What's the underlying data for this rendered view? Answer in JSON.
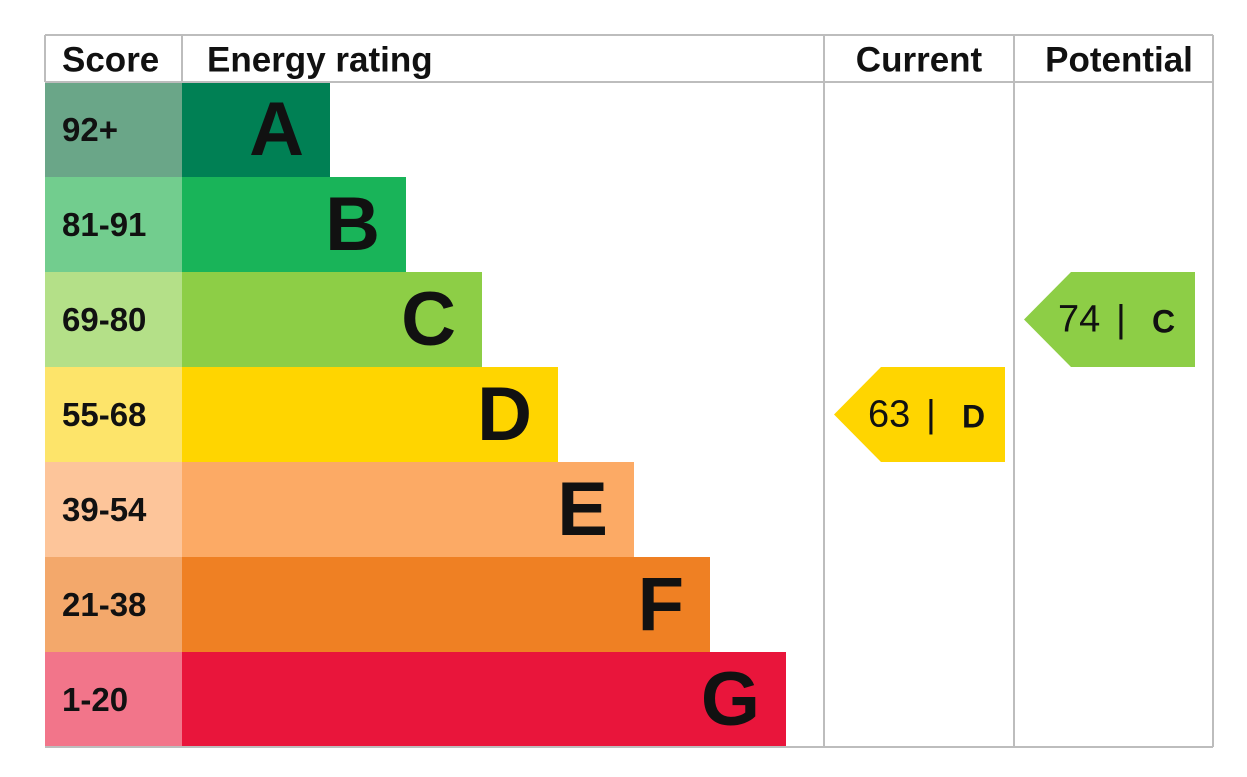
{
  "header": {
    "score": "Score",
    "energy_rating": "Energy rating",
    "current": "Current",
    "potential": "Potential"
  },
  "bands": [
    {
      "score": "92+",
      "letter": "A",
      "score_color": "#6aa688",
      "color": "#008054"
    },
    {
      "score": "81-91",
      "letter": "B",
      "score_color": "#72cd8e",
      "color": "#19b459"
    },
    {
      "score": "69-80",
      "letter": "C",
      "score_color": "#b4e088",
      "color": "#8dce46"
    },
    {
      "score": "55-68",
      "letter": "D",
      "score_color": "#fde46a",
      "color": "#ffd500"
    },
    {
      "score": "39-54",
      "letter": "E",
      "score_color": "#fdc59a",
      "color": "#fcaa65"
    },
    {
      "score": "21-38",
      "letter": "F",
      "score_color": "#f3a86b",
      "color": "#ef8023"
    },
    {
      "score": "1-20",
      "letter": "G",
      "score_color": "#f2758a",
      "color": "#e9153b"
    }
  ],
  "current": {
    "value": 63,
    "separator": "|",
    "letter": "D"
  },
  "potential": {
    "value": 74,
    "separator": "|",
    "letter": "C"
  }
}
